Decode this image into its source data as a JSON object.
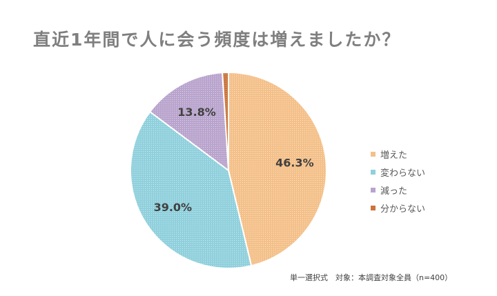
{
  "title": "直近1年間で人に会う頻度は増えましたか？",
  "note": "単一選択式　対象：本調査対象全員（n=400）",
  "chart_data": {
    "type": "pie",
    "title": "直近1年間で人に会う頻度は増えましたか？",
    "legend_position": "right",
    "start_angle": "12 o'clock, clockwise",
    "slices": [
      {
        "label": "増えた",
        "value": 46.3,
        "value_label": "46.3%",
        "color": "#f4c089",
        "show_label": true
      },
      {
        "label": "変わらない",
        "value": 39.0,
        "value_label": "39.0%",
        "color": "#8fd0dc",
        "show_label": true
      },
      {
        "label": "減った",
        "value": 13.8,
        "value_label": "13.8%",
        "color": "#b9a4cd",
        "show_label": true
      },
      {
        "label": "分からない",
        "value": 1.0,
        "value_label": "",
        "color": "#c9743c",
        "show_label": false
      }
    ]
  }
}
